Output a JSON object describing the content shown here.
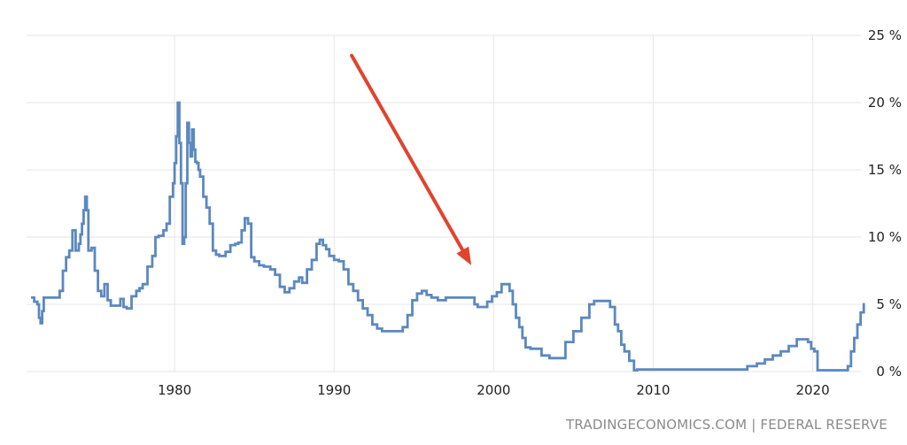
{
  "chart_data": {
    "type": "line",
    "title": "",
    "xlabel": "",
    "ylabel": "",
    "xlim": [
      1971,
      2023.3
    ],
    "ylim": [
      0,
      25
    ],
    "y_ticks": [
      0,
      5,
      10,
      15,
      20,
      25
    ],
    "y_tick_labels": [
      "0 %",
      "5 %",
      "10 %",
      "15 %",
      "20 %",
      "25 %"
    ],
    "x_ticks": [
      1980,
      1990,
      2000,
      2010,
      2020
    ],
    "x_tick_labels": [
      "1980",
      "1990",
      "2000",
      "2010",
      "2020"
    ],
    "grid": true,
    "line_color": "#5b88bf",
    "arrow_color": "#e0442e",
    "series": [
      {
        "x": [
          1971.0,
          1971.2,
          1971.4,
          1971.5,
          1971.6,
          1971.7,
          1971.8,
          1972.0,
          1972.5,
          1972.8,
          1973.0,
          1973.2,
          1973.4,
          1973.6,
          1973.8,
          1974.0,
          1974.1,
          1974.2,
          1974.3,
          1974.4,
          1974.5,
          1974.6,
          1974.8,
          1975.0,
          1975.2,
          1975.4,
          1975.6,
          1975.8,
          1976.0,
          1976.3,
          1976.6,
          1976.8,
          1977.0,
          1977.3,
          1977.6,
          1977.8,
          1978.0,
          1978.3,
          1978.6,
          1978.8,
          1979.0,
          1979.3,
          1979.5,
          1979.7,
          1979.9,
          1980.0,
          1980.1,
          1980.2,
          1980.3,
          1980.4,
          1980.5,
          1980.6,
          1980.7,
          1980.8,
          1980.9,
          1981.0,
          1981.1,
          1981.2,
          1981.3,
          1981.4,
          1981.5,
          1981.6,
          1981.8,
          1982.0,
          1982.2,
          1982.4,
          1982.6,
          1982.8,
          1983.0,
          1983.2,
          1983.5,
          1983.8,
          1984.0,
          1984.2,
          1984.4,
          1984.6,
          1984.8,
          1985.0,
          1985.3,
          1985.6,
          1986.0,
          1986.3,
          1986.6,
          1986.9,
          1987.2,
          1987.5,
          1987.8,
          1988.0,
          1988.3,
          1988.6,
          1988.9,
          1989.1,
          1989.3,
          1989.5,
          1989.7,
          1990.0,
          1990.3,
          1990.6,
          1990.9,
          1991.2,
          1991.5,
          1991.8,
          1992.1,
          1992.4,
          1992.7,
          1993.0,
          1993.5,
          1994.0,
          1994.3,
          1994.6,
          1994.9,
          1995.2,
          1995.5,
          1995.8,
          1996.1,
          1996.5,
          1997.0,
          1997.5,
          1998.0,
          1998.5,
          1998.8,
          1999.0,
          1999.3,
          1999.6,
          1999.9,
          2000.2,
          2000.5,
          2000.8,
          2001.0,
          2001.2,
          2001.4,
          2001.6,
          2001.8,
          2002.0,
          2002.3,
          2002.6,
          2003.0,
          2003.5,
          2004.0,
          2004.5,
          2005.0,
          2005.5,
          2006.0,
          2006.3,
          2006.6,
          2007.0,
          2007.3,
          2007.6,
          2007.8,
          2008.0,
          2008.2,
          2008.5,
          2008.8,
          2009.0,
          2010.0,
          2012.0,
          2014.0,
          2015.9,
          2016.5,
          2017.0,
          2017.5,
          2018.0,
          2018.5,
          2019.0,
          2019.4,
          2019.7,
          2019.9,
          2020.1,
          2020.3,
          2021.0,
          2022.0,
          2022.2,
          2022.4,
          2022.6,
          2022.8,
          2023.0,
          2023.2
        ],
        "y": [
          5.5,
          5.2,
          5.0,
          4.0,
          3.6,
          4.5,
          5.5,
          5.5,
          5.5,
          6.0,
          7.5,
          8.5,
          9.0,
          10.5,
          9.0,
          9.5,
          10.2,
          11.0,
          12.0,
          13.0,
          12.0,
          9.0,
          9.2,
          7.5,
          6.0,
          5.6,
          6.5,
          5.3,
          4.9,
          4.9,
          5.4,
          4.8,
          4.7,
          5.6,
          6.0,
          6.2,
          6.5,
          7.8,
          8.6,
          10.0,
          10.1,
          10.5,
          11.0,
          13.0,
          14.0,
          15.5,
          17.5,
          20.0,
          17.0,
          14.0,
          9.5,
          10.0,
          14.0,
          18.5,
          17.0,
          16.0,
          18.0,
          16.5,
          15.6,
          15.5,
          15.0,
          14.5,
          13.0,
          12.2,
          11.0,
          9.0,
          8.7,
          8.6,
          8.6,
          8.9,
          9.4,
          9.5,
          9.6,
          10.5,
          11.4,
          11.0,
          8.5,
          8.2,
          7.9,
          7.8,
          7.6,
          7.2,
          6.3,
          5.9,
          6.2,
          6.7,
          7.0,
          6.6,
          7.6,
          8.3,
          9.5,
          9.8,
          9.4,
          9.1,
          8.6,
          8.3,
          8.2,
          7.6,
          6.5,
          6.0,
          5.3,
          4.7,
          4.2,
          3.5,
          3.2,
          3.0,
          3.0,
          3.0,
          3.3,
          4.2,
          5.3,
          5.8,
          6.0,
          5.7,
          5.5,
          5.3,
          5.5,
          5.5,
          5.5,
          5.5,
          5.0,
          4.8,
          4.8,
          5.2,
          5.6,
          5.9,
          6.5,
          6.5,
          6.0,
          5.0,
          4.0,
          3.3,
          2.5,
          1.8,
          1.7,
          1.7,
          1.2,
          1.0,
          1.0,
          2.2,
          3.0,
          4.0,
          5.0,
          5.25,
          5.25,
          5.25,
          4.8,
          3.5,
          3.0,
          2.0,
          1.5,
          0.8,
          0.1,
          0.15,
          0.15,
          0.15,
          0.15,
          0.4,
          0.6,
          0.9,
          1.2,
          1.5,
          1.9,
          2.4,
          2.4,
          2.2,
          1.7,
          1.5,
          0.1,
          0.1,
          0.1,
          0.4,
          1.5,
          2.5,
          3.5,
          4.4,
          5.1
        ]
      }
    ],
    "annotations": [
      {
        "type": "arrow",
        "from": {
          "x": 1991.1,
          "y": 23.5
        },
        "to": {
          "x": 1998.6,
          "y": 7.9
        }
      }
    ],
    "source": "TRADINGECONOMICS.COM | FEDERAL RESERVE"
  }
}
